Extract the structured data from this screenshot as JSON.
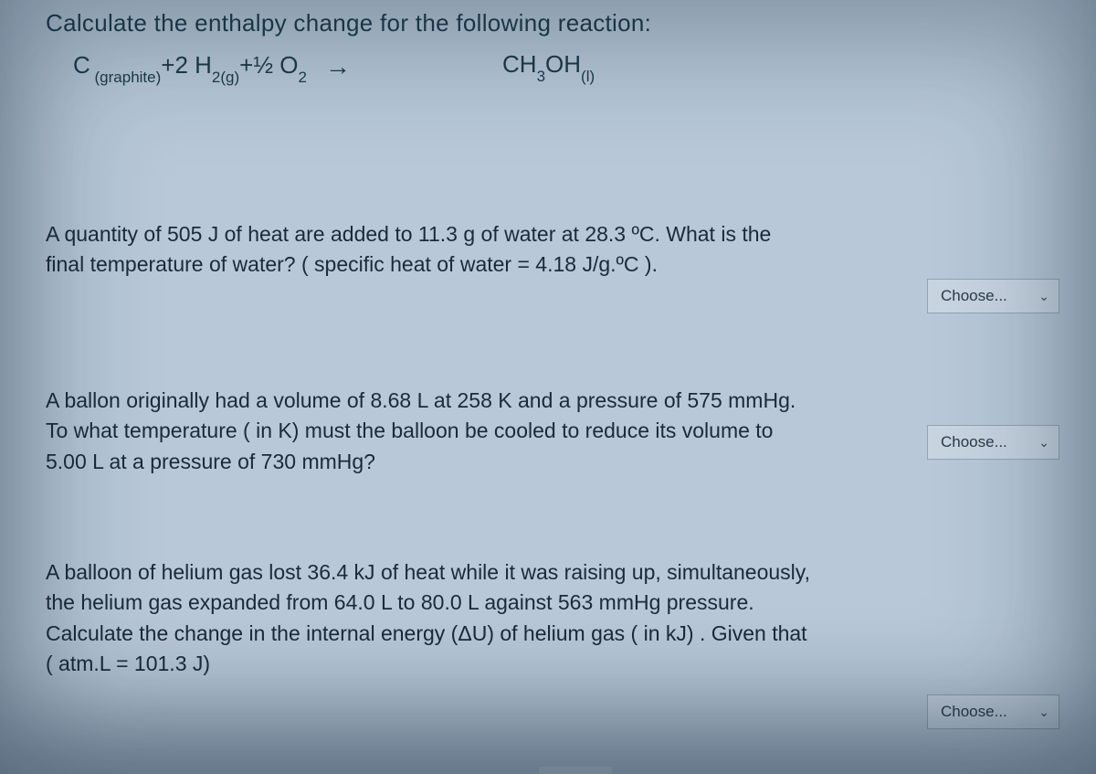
{
  "colors": {
    "page_bg": "#b8c8d8",
    "text": "#1a3a4a",
    "select_bg": "#c8d4e0",
    "select_border": "#8fa5b8"
  },
  "header": {
    "text": "Calculate the enthalpy change for the following reaction:"
  },
  "equation": {
    "left": [
      {
        "base": "C",
        "sub": " (graphite)"
      },
      {
        "op": " + "
      },
      {
        "base": "2 H",
        "sub": "2(g)"
      },
      {
        "op": " + "
      },
      {
        "base": "½ O",
        "sub": "2"
      }
    ],
    "arrow": "→",
    "right": {
      "base": "CH",
      "sub1": "3",
      "mid": "OH",
      "sub2": "(l)"
    }
  },
  "questions": {
    "q1": "A quantity of 505 J of heat are added to 11.3 g of water at 28.3 ºC. What is the final temperature of water? ( specific heat of water = 4.18 J/g.ºC ).",
    "q2": "A ballon originally had a volume of 8.68 L at 258 K and a pressure of 575 mmHg. To what temperature ( in K) must the balloon be cooled to reduce its volume to 5.00 L at a pressure of 730 mmHg?",
    "q3": "A balloon of helium gas lost 36.4 kJ of heat while it was raising up, simultaneously, the helium gas expanded from 64.0 L to 80.0 L against 563 mmHg pressure. Calculate the change in the internal energy (ΔU) of helium gas ( in kJ) . Given that  (  atm.L =  101.3 J)"
  },
  "select": {
    "placeholder": "Choose...",
    "chevron": "⌄"
  }
}
